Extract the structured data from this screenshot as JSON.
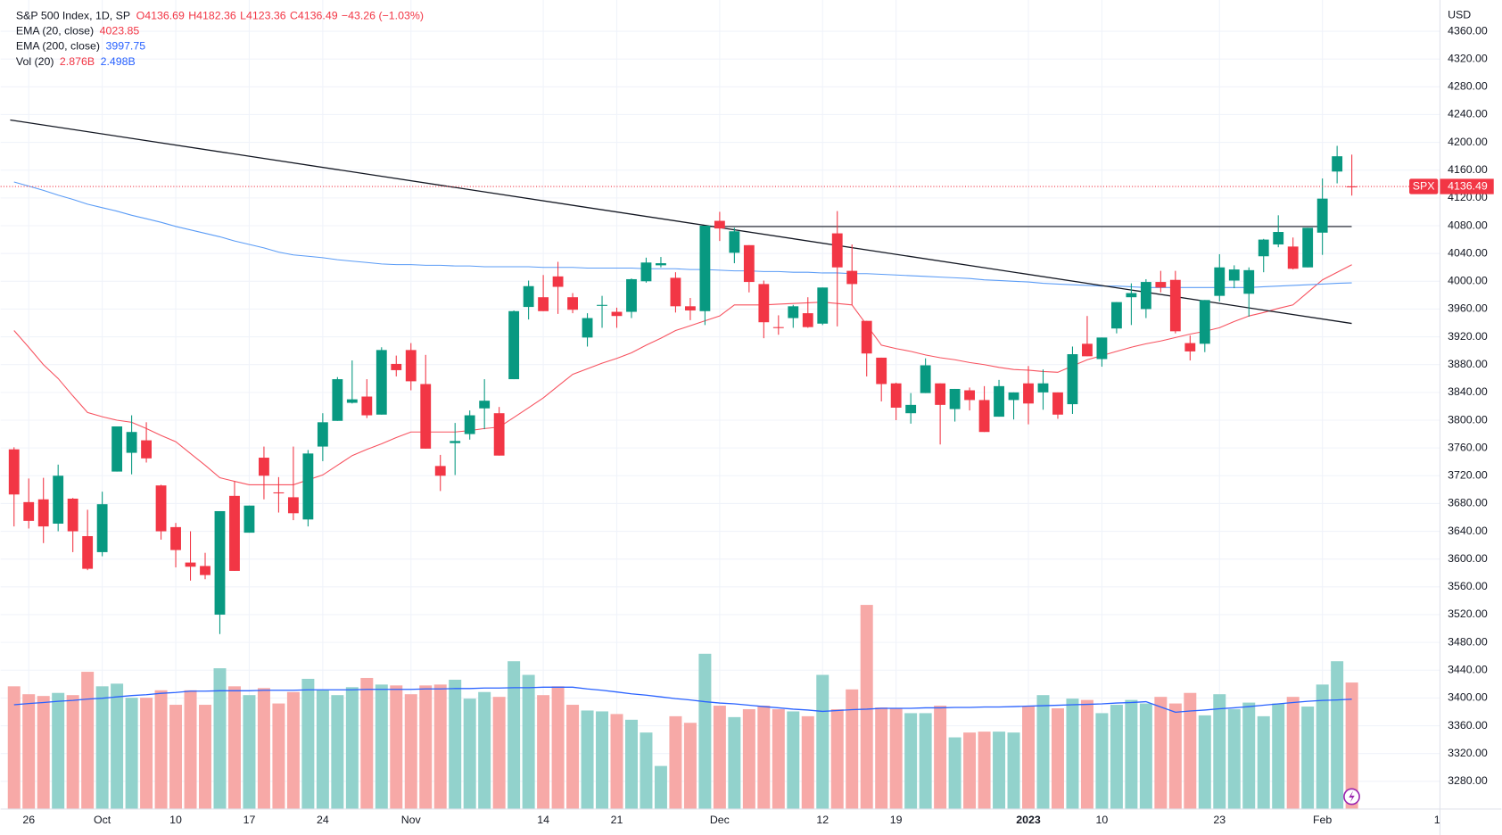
{
  "chart_data": {
    "type": "candlestick",
    "header": {
      "title": "S&P 500 Index, 1D, SP",
      "ohlc": [
        "O4136.69",
        "H4182.36",
        "L4123.36",
        "C4136.49"
      ],
      "change": "−43.26 (−1.03%)"
    },
    "currency": "USD",
    "symbol": "SPX",
    "categories": [
      null,
      "26",
      null,
      null,
      null,
      null,
      "Oct",
      null,
      null,
      null,
      null,
      "10",
      null,
      null,
      null,
      null,
      "17",
      null,
      null,
      null,
      null,
      "24",
      null,
      null,
      null,
      null,
      null,
      "Nov",
      null,
      null,
      null,
      null,
      null,
      null,
      null,
      null,
      "14",
      null,
      null,
      null,
      null,
      "21",
      null,
      null,
      null,
      null,
      null,
      null,
      "Dec",
      null,
      null,
      null,
      null,
      null,
      null,
      "12",
      null,
      null,
      null,
      null,
      "19",
      null,
      null,
      null,
      null,
      null,
      null,
      null,
      null,
      "2023",
      null,
      null,
      null,
      null,
      "10",
      null,
      null,
      null,
      null,
      null,
      null,
      null,
      "23",
      null,
      null,
      null,
      null,
      null,
      null,
      "Feb",
      null,
      null
    ],
    "x_extra_label": "1",
    "open": [
      3758,
      3682,
      3686,
      3651,
      3687,
      3633,
      3610,
      3726,
      3753,
      3771,
      3706,
      3646,
      3595,
      3590,
      3520,
      3691,
      3638,
      3746,
      3696,
      3689,
      3657,
      3762,
      3799,
      3825,
      3834,
      3808,
      3881,
      3901,
      3852,
      3734,
      3767,
      3780,
      3817,
      3810,
      3859,
      3963,
      3977,
      4007,
      3977,
      3919,
      3966,
      3956,
      3956,
      4000,
      4023,
      4005,
      3964,
      3957,
      4087,
      4041,
      4052,
      3996,
      3934,
      3947,
      3954,
      3939,
      4069,
      4015,
      3943,
      3890,
      3853,
      3810,
      3839,
      3853,
      3816,
      3843,
      3829,
      3805,
      3829,
      3853,
      3840,
      3840,
      3823,
      3910,
      3888,
      3932,
      3977,
      3960,
      3999,
      4002,
      3911,
      3910,
      3979,
      4001,
      3982,
      4036,
      4053,
      4050,
      4020,
      4070,
      4158,
      4136.69
    ],
    "high": [
      3761,
      3716,
      3717,
      3736,
      3688,
      3671,
      3697,
      3791,
      3807,
      3797,
      3707,
      3652,
      3640,
      3609,
      3666,
      3712,
      3677,
      3762,
      3718,
      3762,
      3757,
      3810,
      3862,
      3886,
      3859,
      3905,
      3893,
      3911,
      3894,
      3750,
      3796,
      3814,
      3859,
      3819,
      3958,
      4001,
      4009,
      4028,
      3983,
      3954,
      3979,
      3962,
      4004,
      4034,
      4035,
      4013,
      3976,
      4080,
      4100,
      4077,
      4052,
      4001,
      3951,
      3966,
      3977,
      3991,
      4101,
      4053,
      3943,
      3890,
      3854,
      3839,
      3889,
      3853,
      3845,
      3847,
      3849,
      3858,
      3840,
      3878,
      3873,
      3840,
      3906,
      3950,
      3919,
      3970,
      3997,
      4003,
      4015,
      4015,
      3922,
      3973,
      4039,
      4023,
      4020,
      4061,
      4095,
      4063,
      4077,
      4148,
      4195,
      4182.36
    ],
    "low": [
      3647,
      3644,
      3623,
      3640,
      3610,
      3584,
      3604,
      3726,
      3722,
      3739,
      3628,
      3588,
      3569,
      3571,
      3492,
      3583,
      3638,
      3686,
      3667,
      3656,
      3647,
      3741,
      3799,
      3824,
      3803,
      3808,
      3863,
      3843,
      3759,
      3698,
      3721,
      3772,
      3787,
      3749,
      3859,
      3945,
      3957,
      3953,
      3954,
      3906,
      3933,
      3933,
      3947,
      3998,
      4020,
      3955,
      3944,
      3937,
      4058,
      4026,
      3984,
      3918,
      3923,
      3933,
      3933,
      3937,
      3935,
      3966,
      3863,
      3827,
      3800,
      3795,
      3839,
      3765,
      3798,
      3814,
      3783,
      3805,
      3801,
      3794,
      3815,
      3802,
      3809,
      3892,
      3877,
      3925,
      3937,
      3947,
      3984,
      3925,
      3886,
      3898,
      3971,
      3990,
      3949,
      4013,
      4049,
      4017,
      4020,
      4038,
      4141,
      4123.36
    ],
    "close": [
      3693,
      3655,
      3647,
      3720,
      3640,
      3586,
      3679,
      3791,
      3783,
      3745,
      3640,
      3613,
      3589,
      3577,
      3669,
      3583,
      3677,
      3720,
      3695,
      3666,
      3752,
      3797,
      3859,
      3830,
      3807,
      3901,
      3872,
      3856,
      3759,
      3720,
      3770,
      3807,
      3828,
      3749,
      3957,
      3993,
      3957,
      3992,
      3959,
      3947,
      3966,
      3950,
      4003,
      4027,
      4026,
      3964,
      3958,
      4080,
      4076,
      4072,
      3999,
      3941,
      3933,
      3964,
      3934,
      3991,
      4020,
      3996,
      3896,
      3852,
      3818,
      3822,
      3879,
      3822,
      3845,
      3829,
      3783,
      3849,
      3840,
      3824,
      3853,
      3808,
      3895,
      3892,
      3919,
      3970,
      3983,
      3999,
      3991,
      3928,
      3899,
      3973,
      4020,
      4017,
      4016,
      4060,
      4071,
      4018,
      4077,
      4119,
      4180,
      4136.49
    ],
    "up_color": "#089981",
    "down_color": "#f23645",
    "up_volume_color": "#92d2cc",
    "down_volume_color": "#f7a9a7",
    "ylim": [
      3240,
      4405
    ],
    "yticks": [
      {
        "value": 3280,
        "label": "3280.00"
      },
      {
        "value": 3320,
        "label": "3320.00"
      },
      {
        "value": 3360,
        "label": "3360.00"
      },
      {
        "value": 3400,
        "label": "3400.00"
      },
      {
        "value": 3440,
        "label": "3440.00"
      },
      {
        "value": 3480,
        "label": "3480.00"
      },
      {
        "value": 3520,
        "label": "3520.00"
      },
      {
        "value": 3560,
        "label": "3560.00"
      },
      {
        "value": 3600,
        "label": "3600.00"
      },
      {
        "value": 3640,
        "label": "3640.00"
      },
      {
        "value": 3680,
        "label": "3680.00"
      },
      {
        "value": 3720,
        "label": "3720.00"
      },
      {
        "value": 3760,
        "label": "3760.00"
      },
      {
        "value": 3800,
        "label": "3800.00"
      },
      {
        "value": 3840,
        "label": "3840.00"
      },
      {
        "value": 3880,
        "label": "3880.00"
      },
      {
        "value": 3920,
        "label": "3920.00"
      },
      {
        "value": 3960,
        "label": "3960.00"
      },
      {
        "value": 4000,
        "label": "4000.00"
      },
      {
        "value": 4040,
        "label": "4040.00"
      },
      {
        "value": 4080,
        "label": "4080.00"
      },
      {
        "value": 4120,
        "label": "4120.00"
      },
      {
        "value": 4160,
        "label": "4160.00"
      },
      {
        "value": 4200,
        "label": "4200.00"
      },
      {
        "value": 4240,
        "label": "4240.00"
      },
      {
        "value": 4280,
        "label": "4280.00"
      },
      {
        "value": 4320,
        "label": "4320.00"
      },
      {
        "value": 4360,
        "label": "4360.00"
      }
    ],
    "grid": true,
    "overlays": [
      {
        "name": "EMA (20, close)",
        "color": "#f7525f",
        "value_label": "4023.85",
        "values": [
          3929,
          3905,
          3880,
          3860,
          3835,
          3811,
          3805,
          3800,
          3797,
          3788,
          3778,
          3769,
          3752,
          3735,
          3717,
          3712,
          3707,
          3707,
          3707,
          3707,
          3714,
          3721,
          3735,
          3749,
          3758,
          3766,
          3775,
          3783,
          3783,
          3783,
          3783,
          3785,
          3788,
          3790,
          3804,
          3818,
          3832,
          3849,
          3866,
          3874,
          3882,
          3889,
          3897,
          3908,
          3918,
          3929,
          3936,
          3943,
          3950,
          3966,
          3966,
          3966,
          3967,
          3968,
          3969,
          3970,
          3968,
          3966,
          3937,
          3908,
          3903,
          3899,
          3894,
          3890,
          3887,
          3883,
          3880,
          3876,
          3873,
          3872,
          3870,
          3869,
          3878,
          3887,
          3893,
          3899,
          3905,
          3910,
          3914,
          3919,
          3924,
          3928,
          3933,
          3942,
          3950,
          3955,
          3961,
          3966,
          3984,
          4002,
          4013,
          4023.85
        ]
      },
      {
        "name": "EMA (200, close)",
        "color": "#5b9cf6",
        "value_label": "3997.75",
        "values": [
          4143,
          4137,
          4131,
          4124,
          4118,
          4111,
          4106,
          4101,
          4095,
          4090,
          4085,
          4079,
          4074,
          4069,
          4064,
          4058,
          4053,
          4048,
          4042,
          4038,
          4036,
          4034,
          4031,
          4029,
          4027,
          4025,
          4024,
          4024,
          4023,
          4023,
          4022,
          4022,
          4021,
          4021,
          4021,
          4021,
          4020,
          4020,
          4020,
          4019,
          4019,
          4019,
          4019,
          4018,
          4018,
          4018,
          4017,
          4017,
          4016,
          4015,
          4015,
          4014,
          4014,
          4013,
          4013,
          4012,
          4012,
          4011,
          4011,
          4010,
          4009,
          4008,
          4007,
          4006,
          4005,
          4004,
          4002,
          4001,
          4000,
          3999,
          3997,
          3996,
          3995,
          3994,
          3993,
          3993,
          3992,
          3991,
          3991,
          3991,
          3991,
          3991,
          3991,
          3991,
          3991,
          3992,
          3993,
          3994,
          3995,
          3996,
          3997,
          3997.75
        ]
      }
    ],
    "volume": {
      "name": "Vol (20)",
      "value_label": "2.876B",
      "vlim": [
        0,
        5.3
      ],
      "values": [
        2.79,
        2.61,
        2.57,
        2.64,
        2.59,
        3.12,
        2.79,
        2.85,
        2.53,
        2.53,
        2.7,
        2.37,
        2.7,
        2.37,
        3.2,
        2.79,
        2.59,
        2.75,
        2.4,
        2.66,
        2.96,
        2.7,
        2.59,
        2.77,
        2.98,
        2.83,
        2.81,
        2.61,
        2.81,
        2.83,
        2.94,
        2.51,
        2.66,
        2.55,
        3.36,
        3.05,
        2.59,
        2.79,
        2.37,
        2.24,
        2.22,
        2.16,
        2.03,
        1.74,
        0.98,
        2.11,
        1.96,
        3.53,
        2.35,
        2.09,
        2.27,
        2.35,
        2.27,
        2.22,
        2.11,
        3.05,
        2.27,
        2.72,
        4.64,
        2.31,
        2.29,
        2.18,
        2.18,
        2.35,
        1.63,
        1.74,
        1.76,
        1.76,
        1.74,
        2.33,
        2.59,
        2.29,
        2.51,
        2.48,
        2.18,
        2.37,
        2.48,
        2.4,
        2.55,
        2.4,
        2.64,
        2.13,
        2.61,
        2.27,
        2.42,
        2.11,
        2.4,
        2.55,
        2.33,
        2.83,
        3.36,
        2.876
      ],
      "ma": {
        "color": "#2962ff",
        "value_label": "2.498B",
        "values": [
          2.37,
          2.4,
          2.42,
          2.45,
          2.47,
          2.5,
          2.52,
          2.55,
          2.58,
          2.6,
          2.63,
          2.65,
          2.68,
          2.68,
          2.69,
          2.69,
          2.69,
          2.7,
          2.7,
          2.7,
          2.71,
          2.71,
          2.71,
          2.71,
          2.72,
          2.72,
          2.72,
          2.72,
          2.73,
          2.73,
          2.74,
          2.74,
          2.75,
          2.75,
          2.76,
          2.76,
          2.77,
          2.77,
          2.77,
          2.73,
          2.7,
          2.66,
          2.62,
          2.59,
          2.55,
          2.51,
          2.48,
          2.44,
          2.41,
          2.39,
          2.36,
          2.33,
          2.3,
          2.27,
          2.25,
          2.22,
          2.24,
          2.26,
          2.27,
          2.29,
          2.29,
          2.29,
          2.3,
          2.3,
          2.31,
          2.31,
          2.32,
          2.32,
          2.33,
          2.34,
          2.35,
          2.36,
          2.37,
          2.38,
          2.39,
          2.41,
          2.42,
          2.44,
          2.32,
          2.2,
          2.23,
          2.25,
          2.28,
          2.3,
          2.33,
          2.36,
          2.39,
          2.42,
          2.45,
          2.47,
          2.48,
          2.498
        ]
      }
    }
  }
}
